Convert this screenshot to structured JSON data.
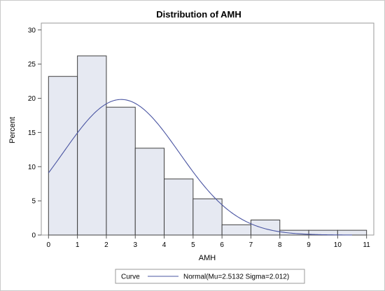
{
  "chart_data": {
    "type": "bar",
    "title": "Distribution of AMH",
    "xlabel": "AMH",
    "ylabel": "Percent",
    "xlim": [
      -0.25,
      11.25
    ],
    "ylim": [
      0,
      31
    ],
    "x_ticks": [
      0,
      1,
      2,
      3,
      4,
      5,
      6,
      7,
      8,
      9,
      10,
      11
    ],
    "y_ticks": [
      0,
      5,
      10,
      15,
      20,
      25,
      30
    ],
    "grid": false,
    "bins": [
      {
        "start": 0,
        "end": 1,
        "percent": 23.2
      },
      {
        "start": 1,
        "end": 2,
        "percent": 26.2
      },
      {
        "start": 2,
        "end": 3,
        "percent": 18.7
      },
      {
        "start": 3,
        "end": 4,
        "percent": 12.7
      },
      {
        "start": 4,
        "end": 5,
        "percent": 8.2
      },
      {
        "start": 5,
        "end": 6,
        "percent": 5.3
      },
      {
        "start": 6,
        "end": 7,
        "percent": 1.5
      },
      {
        "start": 7,
        "end": 8,
        "percent": 2.2
      },
      {
        "start": 8,
        "end": 9,
        "percent": 0.7
      },
      {
        "start": 9,
        "end": 10,
        "percent": 0.7
      },
      {
        "start": 10,
        "end": 11,
        "percent": 0.7
      }
    ],
    "curve": {
      "type": "normal",
      "mu": 2.5132,
      "sigma": 2.012,
      "x_range": [
        0,
        10.5
      ]
    },
    "legend": {
      "placement": "bottom",
      "header": "Curve",
      "entries": [
        {
          "label": "Normal(Mu=2.5132 Sigma=2.012)"
        }
      ]
    },
    "colors": {
      "bar_fill": "#e6e9f2",
      "bar_stroke": "#3f3f3f",
      "curve": "#4a55a2",
      "axis": "#555555",
      "plot_border": "#9a9a9a"
    }
  }
}
